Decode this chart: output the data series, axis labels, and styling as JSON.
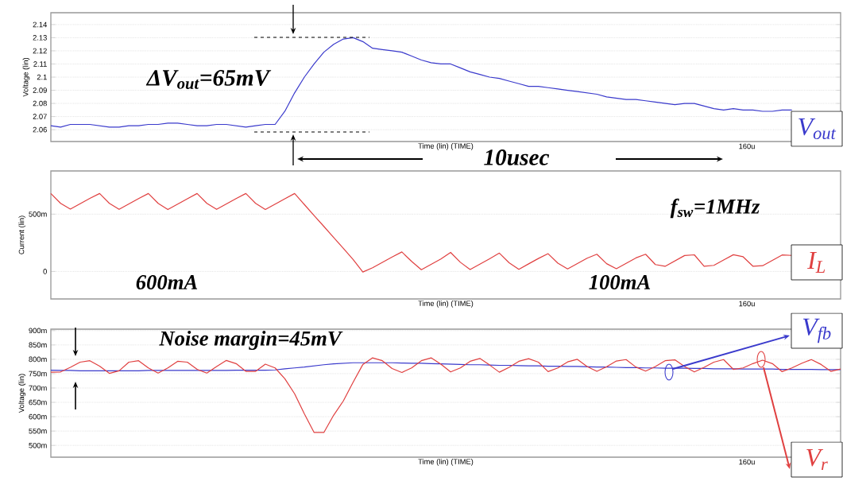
{
  "chart_data": [
    {
      "type": "line",
      "xlabel": "Time (lin) (TIME)",
      "ylabel": "Voltage (lin)",
      "ylim": [
        2.051,
        2.149
      ],
      "yticks": [
        {
          "value": 2.06,
          "label": "2.06"
        },
        {
          "value": 2.07,
          "label": "2.07"
        },
        {
          "value": 2.08,
          "label": "2.08"
        },
        {
          "value": 2.09,
          "label": "2.09"
        },
        {
          "value": 2.1,
          "label": "2.1"
        },
        {
          "value": 2.11,
          "label": "2.11"
        },
        {
          "value": 2.12,
          "label": "2.12"
        },
        {
          "value": 2.13,
          "label": "2.13"
        },
        {
          "value": 2.14,
          "label": "2.14"
        }
      ],
      "grid": "y",
      "categories": [
        null,
        null,
        null,
        null,
        null,
        null,
        null,
        null,
        null,
        null,
        null,
        null,
        null,
        null,
        null,
        null,
        null,
        null,
        null,
        null,
        null,
        null,
        null,
        null,
        null,
        null,
        null,
        null,
        null,
        null,
        null,
        null,
        null,
        null,
        null,
        null,
        null,
        null,
        null,
        null,
        null,
        null,
        null,
        null,
        null,
        null,
        null,
        null,
        null,
        null,
        null,
        null,
        null,
        null,
        null,
        null,
        null,
        null,
        null,
        null,
        null,
        null,
        null,
        null,
        null,
        null,
        null,
        null,
        null,
        null,
        null,
        null,
        null,
        null,
        null,
        null,
        null,
        null,
        null,
        null,
        null,
        null
      ],
      "series": [
        {
          "name": "V$_{out}$",
          "color": "#3a3acc",
          "values": [
            2.063,
            2.062,
            2.064,
            2.064,
            2.064,
            2.063,
            2.062,
            2.062,
            2.063,
            2.063,
            2.064,
            2.064,
            2.065,
            2.065,
            2.064,
            2.063,
            2.063,
            2.064,
            2.064,
            2.063,
            2.062,
            2.063,
            2.064,
            2.064,
            2.074,
            2.088,
            2.1,
            2.11,
            2.119,
            2.125,
            2.129,
            2.13,
            2.127,
            2.122,
            2.121,
            2.12,
            2.119,
            2.116,
            2.113,
            2.111,
            2.11,
            2.11,
            2.107,
            2.104,
            2.102,
            2.1,
            2.099,
            2.097,
            2.095,
            2.093,
            2.093,
            2.092,
            2.091,
            2.09,
            2.089,
            2.088,
            2.087,
            2.085,
            2.084,
            2.083,
            2.083,
            2.082,
            2.081,
            2.08,
            2.079,
            2.08,
            2.08,
            2.078,
            2.076,
            2.075,
            2.076,
            2.075,
            2.075,
            2.074,
            2.074,
            2.075,
            2.075,
            null,
            null,
            null,
            null,
            null
          ]
        }
      ],
      "annotations": [
        "ΔV$_{out}$=65mV",
        "10usec",
        "160u"
      ]
    },
    {
      "type": "line",
      "xlabel": "Time (lin) (TIME)",
      "ylabel": "Current (lin)",
      "ylim": [
        -240,
        877
      ],
      "yticks": [
        {
          "value": 0,
          "label": "0"
        },
        {
          "value": 500,
          "label": "500m"
        }
      ],
      "grid": "y",
      "categories": [
        null,
        null,
        null,
        null,
        null,
        null,
        null,
        null,
        null,
        null,
        null,
        null,
        null,
        null,
        null,
        null,
        null,
        null,
        null,
        null,
        null,
        null,
        null,
        null,
        null,
        null,
        null,
        null,
        null,
        null,
        null,
        null,
        null,
        null,
        null,
        null,
        null,
        null,
        null,
        null,
        null,
        null,
        null,
        null,
        null,
        null,
        null,
        null,
        null,
        null,
        null,
        null,
        null,
        null,
        null,
        null,
        null,
        null,
        null,
        null,
        null,
        null,
        null,
        null,
        null,
        null,
        null,
        null,
        null,
        null,
        null,
        null,
        null,
        null,
        null,
        null,
        null,
        null,
        null,
        null,
        null,
        null
      ],
      "series": [
        {
          "name": "I$_{L}$",
          "color": "#e04040",
          "values": [
            680,
            594,
            544,
            591,
            637,
            680,
            594,
            542,
            589,
            636,
            680,
            594,
            540,
            587,
            634,
            680,
            594,
            542,
            589,
            636,
            680,
            594,
            540,
            587,
            634,
            680,
            584,
            488,
            393,
            297,
            201,
            105,
            -5,
            32,
            79,
            126,
            170,
            88,
            15,
            62,
            109,
            166,
            80,
            17,
            64,
            111,
            160,
            76,
            19,
            66,
            113,
            155,
            72,
            22,
            69,
            116,
            150,
            68,
            24,
            71,
            118,
            150,
            60,
            45,
            92,
            139,
            145,
            45,
            53,
            100,
            146,
            128,
            46,
            50,
            97,
            144,
            140,
            null,
            null,
            null,
            null,
            null
          ]
        }
      ],
      "annotations": [
        "f$_{sw}$=1MHz",
        "600mA",
        "100mA",
        "160u"
      ]
    },
    {
      "type": "line",
      "xlabel": "Time (lin) (TIME)",
      "ylabel": "Voltage (lin)",
      "legend": "right",
      "ylim": [
        459,
        905
      ],
      "yticks": [
        {
          "value": 500,
          "label": "500m"
        },
        {
          "value": 550,
          "label": "550m"
        },
        {
          "value": 600,
          "label": "600m"
        },
        {
          "value": 650,
          "label": "650m"
        },
        {
          "value": 700,
          "label": "700m"
        },
        {
          "value": 750,
          "label": "750m"
        },
        {
          "value": 800,
          "label": "800m"
        },
        {
          "value": 850,
          "label": "850m"
        },
        {
          "value": 900,
          "label": "900m"
        }
      ],
      "grid": "y",
      "categories": [
        null,
        null,
        null,
        null,
        null,
        null,
        null,
        null,
        null,
        null,
        null,
        null,
        null,
        null,
        null,
        null,
        null,
        null,
        null,
        null,
        null,
        null,
        null,
        null,
        null,
        null,
        null,
        null,
        null,
        null,
        null,
        null,
        null,
        null,
        null,
        null,
        null,
        null,
        null,
        null,
        null,
        null,
        null,
        null,
        null,
        null,
        null,
        null,
        null,
        null,
        null,
        null,
        null,
        null,
        null,
        null,
        null,
        null,
        null,
        null,
        null,
        null,
        null,
        null,
        null,
        null,
        null,
        null,
        null,
        null,
        null,
        null,
        null,
        null,
        null,
        null,
        null,
        null,
        null,
        null,
        null,
        null
      ],
      "series": [
        {
          "name": "V$_{fb}$",
          "color": "#3a3acc",
          "values": [
            762,
            761,
            761,
            760,
            760,
            760,
            760,
            760,
            760,
            760,
            761,
            761,
            761,
            761,
            761,
            761,
            761,
            761,
            761,
            762,
            762,
            762,
            762,
            763,
            767,
            770,
            773,
            777,
            781,
            784,
            786,
            788,
            788,
            788,
            788,
            788,
            787,
            786,
            786,
            785,
            784,
            783,
            782,
            781,
            781,
            780,
            779,
            779,
            778,
            777,
            777,
            776,
            776,
            775,
            775,
            774,
            773,
            773,
            772,
            771,
            771,
            770,
            770,
            769,
            769,
            769,
            768,
            768,
            767,
            767,
            767,
            766,
            766,
            766,
            766,
            765,
            765,
            765,
            765,
            764,
            764,
            764
          ]
        },
        {
          "name": "V$_{r}$",
          "color": "#e04040",
          "values": [
            755,
            756,
            772,
            790,
            795,
            776,
            751,
            760,
            790,
            795,
            770,
            752,
            770,
            793,
            790,
            765,
            752,
            775,
            796,
            785,
            758,
            758,
            783,
            770,
            732,
            680,
            610,
            545,
            545,
            605,
            655,
            720,
            782,
            805,
            795,
            768,
            754,
            770,
            795,
            805,
            783,
            756,
            770,
            793,
            803,
            780,
            755,
            772,
            793,
            802,
            790,
            757,
            770,
            791,
            800,
            775,
            758,
            774,
            794,
            799,
            773,
            759,
            775,
            795,
            798,
            775,
            756,
            772,
            790,
            799,
            765,
            770,
            785,
            797,
            785,
            757,
            770,
            786,
            799,
            782,
            758,
            766
          ]
        }
      ],
      "annotations": [
        "Noise margin=45mV",
        "160u"
      ]
    }
  ]
}
